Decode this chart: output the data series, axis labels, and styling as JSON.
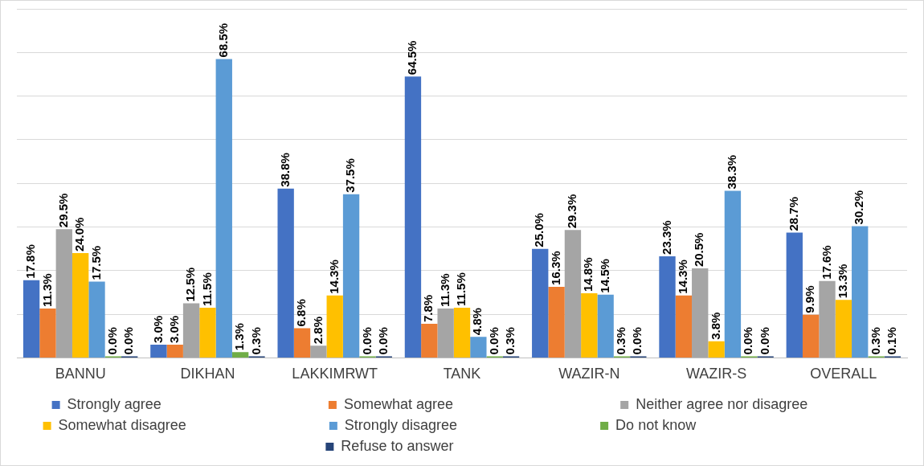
{
  "chart_data": {
    "type": "bar",
    "categories": [
      "BANNU",
      "DIKHAN",
      "LAKKIMRWT",
      "TANK",
      "WAZIR-N",
      "WAZIR-S",
      "OVERALL"
    ],
    "series": [
      {
        "name": "Strongly agree",
        "color": "#4472c4",
        "values": [
          17.8,
          3.0,
          38.8,
          64.5,
          25.0,
          23.3,
          28.7
        ],
        "value_labels": [
          "17.8%",
          "3.0%",
          "38.8%",
          "64.5%",
          "25.0%",
          "23.3%",
          "28.7%"
        ]
      },
      {
        "name": "Somewhat agree",
        "color": "#ed7d31",
        "values": [
          11.3,
          3.0,
          6.8,
          7.8,
          16.3,
          14.3,
          9.9
        ],
        "value_labels": [
          "11.3%",
          "3.0%",
          "6.8%",
          "7.8%",
          "16.3%",
          "14.3%",
          "9.9%"
        ]
      },
      {
        "name": "Neither agree nor disagree",
        "color": "#a5a5a5",
        "values": [
          29.5,
          12.5,
          2.8,
          11.3,
          29.3,
          20.5,
          17.6
        ],
        "value_labels": [
          "29.5%",
          "12.5%",
          "2.8%",
          "11.3%",
          "29.3%",
          "20.5%",
          "17.6%"
        ]
      },
      {
        "name": "Somewhat disagree",
        "color": "#ffc000",
        "values": [
          24.0,
          11.5,
          14.3,
          11.5,
          14.8,
          3.8,
          13.3
        ],
        "value_labels": [
          "24.0%",
          "11.5%",
          "14.3%",
          "11.5%",
          "14.8%",
          "3.8%",
          "13.3%"
        ]
      },
      {
        "name": "Strongly disagree",
        "color": "#5b9bd5",
        "values": [
          17.5,
          68.5,
          37.5,
          4.8,
          14.5,
          38.3,
          30.2
        ],
        "value_labels": [
          "17.5%",
          "68.5%",
          "37.5%",
          "4.8%",
          "14.5%",
          "38.3%",
          "30.2%"
        ]
      },
      {
        "name": "Do not know",
        "color": "#70ad47",
        "values": [
          0.0,
          1.3,
          0.0,
          0.0,
          0.3,
          0.0,
          0.3
        ],
        "value_labels": [
          "0.0%",
          "1.3%",
          "0.0%",
          "0.0%",
          "0.3%",
          "0.0%",
          "0.3%"
        ]
      },
      {
        "name": "Refuse to answer",
        "color": "#264478",
        "values": [
          0.0,
          0.3,
          0.0,
          0.3,
          0.0,
          0.0,
          0.1
        ],
        "value_labels": [
          "0.0%",
          "0.3%",
          "0.0%",
          "0.3%",
          "0.0%",
          "0.0%",
          "0.1%"
        ]
      }
    ],
    "ylim": [
      0,
      80
    ],
    "yticks": [
      0,
      10,
      20,
      30,
      40,
      50,
      60,
      70,
      80
    ],
    "tick_labels": "x",
    "grid": "y",
    "legend": "bottom"
  }
}
